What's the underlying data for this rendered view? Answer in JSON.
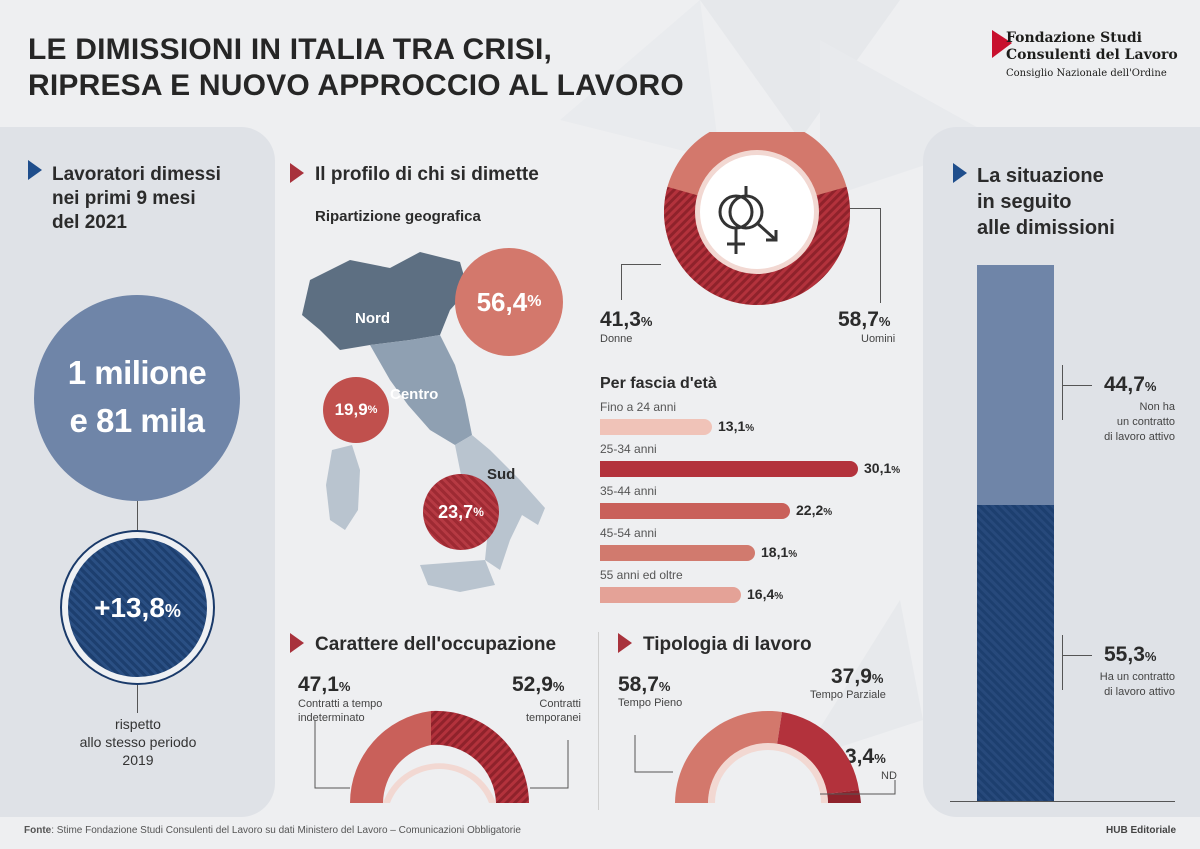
{
  "title": {
    "line1": "LE DIMISSIONI IN ITALIA TRA CRISI,",
    "line2": "RIPRESA E NUOVO APPROCCIO AL LAVORO"
  },
  "logo": {
    "line1": "Fondazione Studi",
    "line2": "Consulenti del Lavoro",
    "line3": "Consiglio Nazionale dell'Ordine"
  },
  "left": {
    "header": [
      "Lavoratori dimessi",
      "nei primi 9 mesi",
      "del 2021"
    ],
    "total": [
      "1 milione",
      "e 81 mila"
    ],
    "change": "+13,8",
    "change_unit": "%",
    "note": [
      "rispetto",
      "allo stesso periodo",
      "2019"
    ]
  },
  "profile": {
    "header": "Il profilo di chi si dimette",
    "geo_title": "Ripartizione geografica",
    "regions": [
      {
        "name": "Nord",
        "value": "56,4",
        "unit": "%"
      },
      {
        "name": "Centro",
        "value": "19,9",
        "unit": "%"
      },
      {
        "name": "Sud",
        "value": "23,7",
        "unit": "%"
      }
    ]
  },
  "gender": {
    "women": {
      "value": "41,3",
      "unit": "%",
      "label": "Donne",
      "share": 0.413
    },
    "men": {
      "value": "58,7",
      "unit": "%",
      "label": "Uomini",
      "share": 0.587
    },
    "icon": "gender-symbols-icon"
  },
  "age": {
    "title": "Per fascia d'età",
    "groups": [
      {
        "label": "Fino a 24 anni",
        "value": "13,1",
        "unit": "%",
        "v": 13.1,
        "color": "#f0c3b8"
      },
      {
        "label": "25-34 anni",
        "value": "30,1",
        "unit": "%",
        "v": 30.1,
        "color": "#b3323c"
      },
      {
        "label": "35-44 anni",
        "value": "22,2",
        "unit": "%",
        "v": 22.2,
        "color": "#c9605a"
      },
      {
        "label": "45-54 anni",
        "value": "18,1",
        "unit": "%",
        "v": 18.1,
        "color": "#d17a6e"
      },
      {
        "label": "55 anni ed oltre",
        "value": "16,4",
        "unit": "%",
        "v": 16.4,
        "color": "#e4a297"
      }
    ]
  },
  "occupation": {
    "header": "Carattere dell'occupazione",
    "left": {
      "value": "47,1",
      "unit": "%",
      "label": [
        "Contratti a tempo",
        "indeterminato"
      ]
    },
    "right": {
      "value": "52,9",
      "unit": "%",
      "label": [
        "Contratti",
        "temporanei"
      ]
    }
  },
  "worktype": {
    "header": "Tipologia di lavoro",
    "full": {
      "value": "58,7",
      "unit": "%",
      "label": "Tempo Pieno"
    },
    "part": {
      "value": "37,9",
      "unit": "%",
      "label": "Tempo Parziale"
    },
    "nd": {
      "value": "3,4",
      "unit": "%",
      "label": "ND"
    }
  },
  "after": {
    "header": [
      "La situazione",
      "in seguito",
      "alle dimissioni"
    ],
    "no_contract": {
      "value": "44,7",
      "unit": "%",
      "label": [
        "Non ha",
        "un contratto",
        "di lavoro attivo"
      ],
      "share": 0.447
    },
    "contract": {
      "value": "55,3",
      "unit": "%",
      "label": [
        "Ha un contratto",
        "di lavoro attivo"
      ],
      "share": 0.553
    }
  },
  "footer": {
    "source_label": "Fonte",
    "source": ": Stime Fondazione Studi Consulenti del Lavoro su dati Ministero del Lavoro – Comunicazioni Obbligatorie",
    "publisher": "HUB Editoriale"
  },
  "colors": {
    "blue": "#1f4e8c",
    "red": "#a8323c",
    "salmon": "#d3786c",
    "steel": "#6f85a8",
    "navy": "#1d3f6f"
  }
}
